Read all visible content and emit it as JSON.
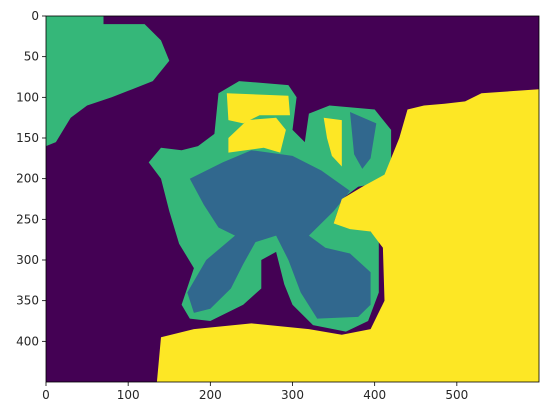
{
  "chart_data": {
    "type": "heatmap",
    "title": "",
    "xlabel": "",
    "ylabel": "",
    "colormap": "viridis",
    "grid": false,
    "x_range": [
      0,
      600
    ],
    "y_range": [
      0,
      450
    ],
    "y_axis_inverted": true,
    "x_ticks": [
      0,
      100,
      200,
      300,
      400,
      500
    ],
    "y_ticks": [
      0,
      50,
      100,
      150,
      200,
      250,
      300,
      350,
      400
    ],
    "classes": [
      {
        "value": 0,
        "color": "#440154"
      },
      {
        "value": 1,
        "color": "#31688e"
      },
      {
        "value": 2,
        "color": "#35b779"
      },
      {
        "value": 3,
        "color": "#fde725"
      }
    ],
    "background_class": 0,
    "regions": [
      {
        "class": 2,
        "points": [
          [
            0,
            0
          ],
          [
            70,
            0
          ],
          [
            70,
            10
          ],
          [
            120,
            10
          ],
          [
            140,
            30
          ],
          [
            150,
            55
          ],
          [
            130,
            80
          ],
          [
            105,
            90
          ],
          [
            80,
            100
          ],
          [
            50,
            110
          ],
          [
            30,
            125
          ],
          [
            12,
            155
          ],
          [
            0,
            160
          ]
        ]
      },
      {
        "class": 2,
        "points": [
          [
            210,
            95
          ],
          [
            235,
            80
          ],
          [
            295,
            85
          ],
          [
            305,
            100
          ],
          [
            300,
            140
          ],
          [
            315,
            155
          ],
          [
            320,
            120
          ],
          [
            345,
            110
          ],
          [
            400,
            115
          ],
          [
            420,
            140
          ],
          [
            420,
            185
          ],
          [
            405,
            205
          ],
          [
            380,
            210
          ],
          [
            360,
            225
          ],
          [
            350,
            255
          ],
          [
            385,
            255
          ],
          [
            405,
            275
          ],
          [
            405,
            340
          ],
          [
            392,
            375
          ],
          [
            365,
            388
          ],
          [
            325,
            380
          ],
          [
            300,
            355
          ],
          [
            290,
            330
          ],
          [
            280,
            290
          ],
          [
            262,
            300
          ],
          [
            262,
            335
          ],
          [
            240,
            355
          ],
          [
            200,
            375
          ],
          [
            175,
            372
          ],
          [
            165,
            355
          ],
          [
            180,
            310
          ],
          [
            162,
            280
          ],
          [
            150,
            240
          ],
          [
            140,
            200
          ],
          [
            125,
            180
          ],
          [
            140,
            162
          ],
          [
            165,
            165
          ],
          [
            185,
            160
          ],
          [
            205,
            145
          ]
        ]
      },
      {
        "class": 3,
        "points": [
          [
            220,
            95
          ],
          [
            295,
            98
          ],
          [
            297,
            122
          ],
          [
            260,
            122
          ],
          [
            240,
            132
          ],
          [
            222,
            128
          ]
        ]
      },
      {
        "class": 3,
        "points": [
          [
            222,
            150
          ],
          [
            245,
            128
          ],
          [
            280,
            125
          ],
          [
            292,
            140
          ],
          [
            285,
            168
          ],
          [
            265,
            162
          ],
          [
            222,
            168
          ]
        ]
      },
      {
        "class": 3,
        "points": [
          [
            338,
            125
          ],
          [
            360,
            128
          ],
          [
            360,
            185
          ],
          [
            348,
            172
          ],
          [
            342,
            150
          ]
        ]
      },
      {
        "class": 1,
        "points": [
          [
            175,
            200
          ],
          [
            215,
            180
          ],
          [
            250,
            165
          ],
          [
            300,
            172
          ],
          [
            335,
            190
          ],
          [
            370,
            215
          ],
          [
            350,
            240
          ],
          [
            320,
            270
          ],
          [
            340,
            285
          ],
          [
            370,
            292
          ],
          [
            395,
            315
          ],
          [
            395,
            355
          ],
          [
            380,
            370
          ],
          [
            330,
            372
          ],
          [
            310,
            340
          ],
          [
            295,
            300
          ],
          [
            280,
            270
          ],
          [
            255,
            278
          ],
          [
            240,
            305
          ],
          [
            225,
            335
          ],
          [
            200,
            360
          ],
          [
            180,
            365
          ],
          [
            172,
            340
          ],
          [
            195,
            300
          ],
          [
            230,
            270
          ],
          [
            210,
            260
          ],
          [
            192,
            232
          ]
        ]
      },
      {
        "class": 1,
        "points": [
          [
            370,
            118
          ],
          [
            402,
            132
          ],
          [
            395,
            175
          ],
          [
            385,
            188
          ],
          [
            375,
            170
          ]
        ]
      },
      {
        "class": 3,
        "points": [
          [
            440,
            115
          ],
          [
            460,
            110
          ],
          [
            485,
            108
          ],
          [
            510,
            105
          ],
          [
            530,
            95
          ],
          [
            600,
            90
          ],
          [
            600,
            450
          ],
          [
            135,
            450
          ],
          [
            140,
            395
          ],
          [
            180,
            385
          ],
          [
            250,
            378
          ],
          [
            320,
            385
          ],
          [
            360,
            392
          ],
          [
            395,
            385
          ],
          [
            412,
            350
          ],
          [
            410,
            285
          ],
          [
            395,
            265
          ],
          [
            370,
            262
          ],
          [
            350,
            255
          ],
          [
            360,
            225
          ],
          [
            385,
            210
          ],
          [
            412,
            195
          ],
          [
            430,
            150
          ]
        ]
      }
    ]
  }
}
